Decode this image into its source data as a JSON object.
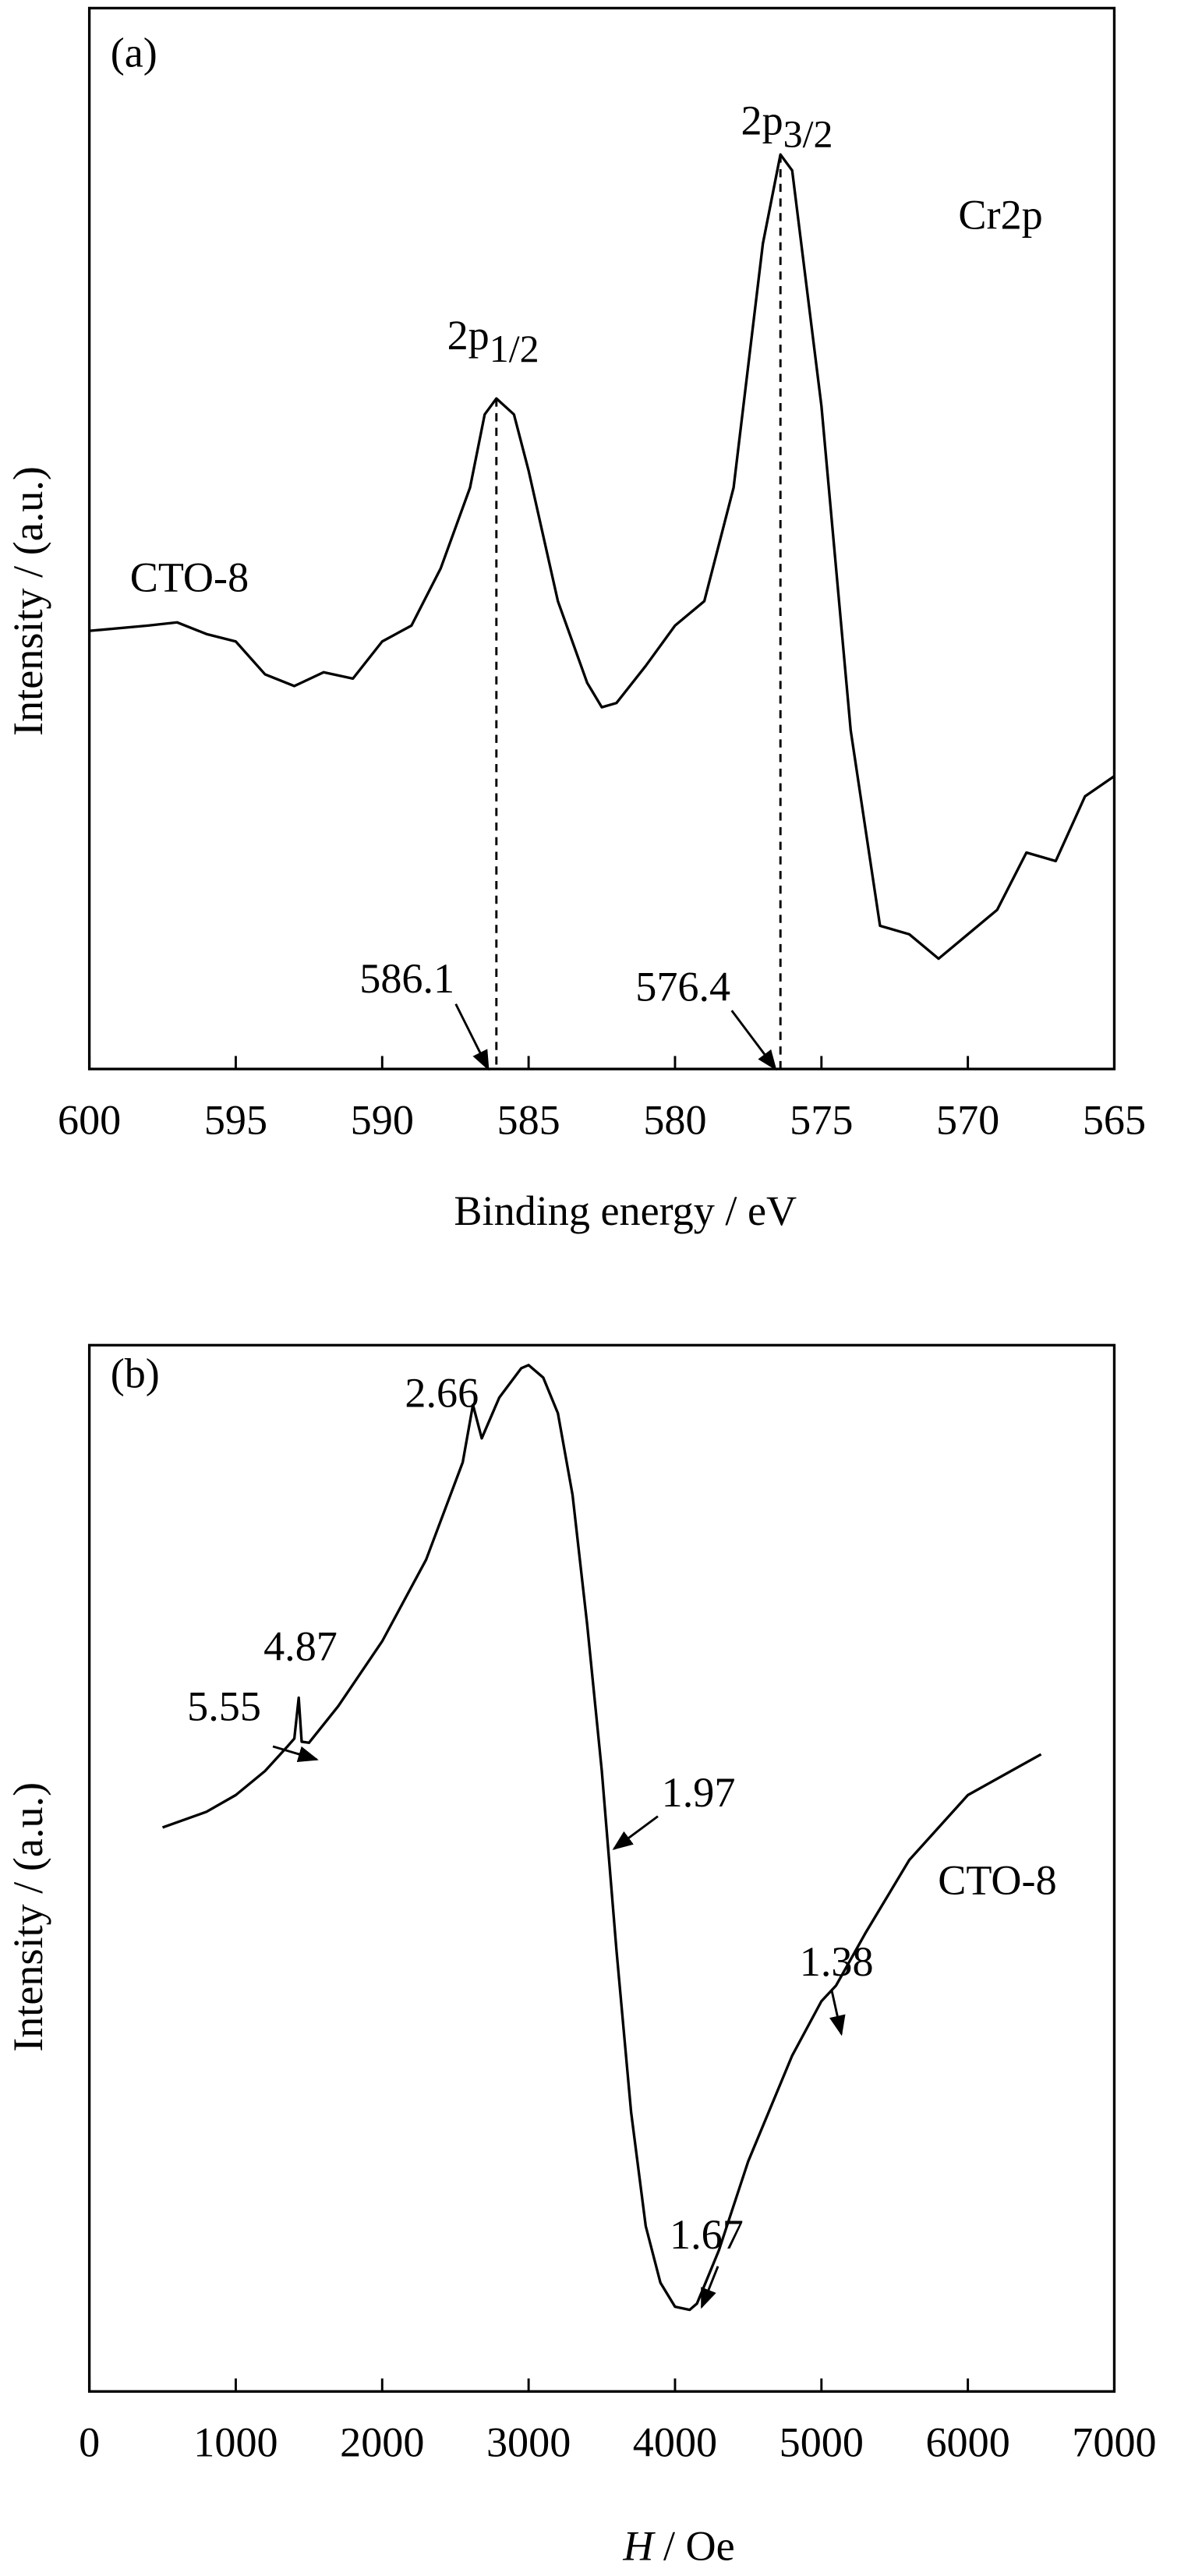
{
  "chart_data": [
    {
      "type": "line",
      "panel": "(a)",
      "x_label": "Binding energy / eV",
      "y_label": "Intensity / (a.u.)",
      "sample": "CTO-8",
      "region": "Cr2p",
      "xlim": [
        600,
        565
      ],
      "xticks": [
        600,
        595,
        590,
        585,
        580,
        575,
        570,
        565
      ],
      "ylim": [
        0,
        100
      ],
      "x": [
        600,
        598,
        597,
        596,
        595,
        594,
        593,
        592,
        591,
        590,
        589,
        588,
        587,
        586.5,
        586.1,
        585.5,
        585,
        584,
        583,
        582.5,
        582,
        581,
        580,
        579,
        578,
        577,
        576.4,
        576,
        575,
        574,
        573,
        572,
        571,
        570,
        569,
        568,
        567,
        566,
        565
      ],
      "series": [
        {
          "name": "CTO-8",
          "color": "#000000",
          "values": [
            41.3,
            41.8,
            42.1,
            41.0,
            40.3,
            37.2,
            36.1,
            37.4,
            36.8,
            40.3,
            41.8,
            47.2,
            54.8,
            61.7,
            63.2,
            61.7,
            56.4,
            44.1,
            36.4,
            34.1,
            34.5,
            38.0,
            41.8,
            44.1,
            54.8,
            77.8,
            86.2,
            84.7,
            62.5,
            31.9,
            13.5,
            12.7,
            10.4,
            12.7,
            15.0,
            20.4,
            19.6,
            25.7,
            27.6
          ]
        }
      ],
      "peaks": [
        {
          "name": "2p",
          "sub": "1/2",
          "x": 586.1,
          "y": 63.2
        },
        {
          "name": "2p",
          "sub": "3/2",
          "x": 576.4,
          "y": 86.2
        }
      ]
    },
    {
      "type": "line",
      "panel": "(b)",
      "x_label_symbol": "H",
      "x_label_unit": "/ Oe",
      "y_label": "Intensity / (a.u.)",
      "sample": "CTO-8",
      "xlim": [
        0,
        7000
      ],
      "xticks": [
        0,
        1000,
        2000,
        3000,
        4000,
        5000,
        6000,
        7000
      ],
      "ylim": [
        0,
        100
      ],
      "x": [
        500,
        800,
        1000,
        1200,
        1350,
        1400,
        1430,
        1450,
        1500,
        1700,
        2000,
        2300,
        2550,
        2620,
        2680,
        2800,
        2950,
        3000,
        3100,
        3200,
        3300,
        3400,
        3500,
        3600,
        3700,
        3800,
        3900,
        4000,
        4100,
        4150,
        4300,
        4500,
        4800,
        5000,
        5100,
        5300,
        5600,
        6000,
        6500
      ],
      "series": [
        {
          "name": "CTO-8",
          "color": "#000000",
          "values": [
            53.9,
            55.4,
            57.0,
            59.3,
            61.6,
            62.4,
            66.3,
            62.1,
            62.0,
            65.5,
            71.7,
            79.5,
            88.8,
            94.3,
            91.1,
            95.0,
            97.8,
            98.1,
            96.9,
            93.5,
            85.7,
            73.3,
            59.3,
            42.2,
            26.7,
            15.8,
            10.4,
            8.1,
            7.8,
            8.4,
            13.5,
            22.0,
            32.1,
            37.3,
            38.8,
            43.8,
            50.8,
            57.0,
            60.9
          ]
        }
      ],
      "g_values": [
        "5.55",
        "4.87",
        "2.66",
        "1.97",
        "1.67",
        "1.38"
      ]
    }
  ]
}
